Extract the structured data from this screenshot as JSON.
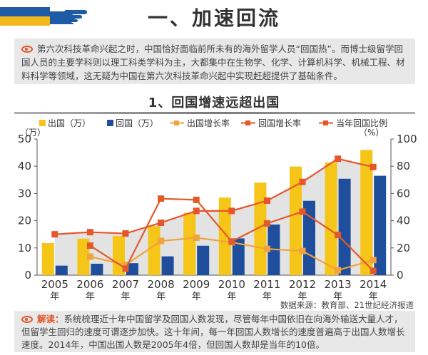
{
  "header": {
    "title": "一、加速回流"
  },
  "intro": {
    "text": "第六次科技革命兴起之时，中国恰好面临前所未有的海外留学人员“回国热”。而博士级留学回国人员的主要学科则以理工科类学科为主，大都集中在生物学、化学、计算机科学、机械工程、材料科学等领域，这无疑为中国在第六次科技革命兴起中实现赶超提供了基础条件。"
  },
  "section": {
    "title": "1、回国增速远超出国"
  },
  "chart_data": {
    "type": "bar",
    "categories": [
      "2005\n年",
      "2006\n年",
      "2007\n年",
      "2008\n年",
      "2009\n年",
      "2010\n年",
      "2011\n年",
      "2012\n年",
      "2013\n年",
      "2014\n年"
    ],
    "series": [
      {
        "name": "出国（万）",
        "kind": "bar",
        "axis": "left",
        "color": "#f5c518",
        "values": [
          11.8,
          13.4,
          14.4,
          18.0,
          22.9,
          28.5,
          34.0,
          39.9,
          41.4,
          46.0
        ]
      },
      {
        "name": "回国（万）",
        "kind": "bar",
        "axis": "left",
        "color": "#1f4e9c",
        "values": [
          3.5,
          4.2,
          4.4,
          6.9,
          10.8,
          13.5,
          18.6,
          27.3,
          35.4,
          36.5
        ]
      },
      {
        "name": "出国增长率",
        "kind": "line",
        "axis": "right",
        "color": "#f0a33c",
        "values": [
          null,
          13.6,
          7.5,
          25.1,
          27.5,
          24.1,
          19.3,
          17.7,
          3.6,
          11.1
        ]
      },
      {
        "name": "回国增长率",
        "kind": "line",
        "axis": "right",
        "color": "#e25a2a",
        "values": [
          null,
          21.7,
          4.8,
          56.2,
          55.3,
          24.7,
          38.0,
          46.6,
          29.5,
          3.2
        ]
      },
      {
        "name": "当年回国比例",
        "kind": "line",
        "axis": "right",
        "color": "#e8552a",
        "values": [
          30.0,
          31.6,
          30.6,
          38.5,
          47.2,
          47.2,
          54.7,
          68.5,
          85.5,
          79.4
        ]
      }
    ],
    "y_left": {
      "label": "（万）",
      "min": 0,
      "max": 50,
      "ticks": [
        "0",
        "10",
        "20",
        "30",
        "40",
        "50"
      ]
    },
    "y_right": {
      "label": "（%）",
      "min": 0,
      "max": 100,
      "ticks": [
        "0",
        "20",
        "40",
        "60",
        "80",
        "100"
      ]
    },
    "legend": "top",
    "grid": false
  },
  "source": {
    "text": "数据来源：教育部、21世纪经济报道"
  },
  "note": {
    "label": "解读：",
    "text": "系统梳理近十年中国留学及回国人数发现，尽管每年中国依旧在向海外输送大量人才，但留学生回归的速度可谓逐步加快。这十年间，每一年回国人数增长的速度普遍高于出国人数增长速度。2014年，中国出国人数是2005年4倍，但回国人数却是当年的10倍。"
  }
}
